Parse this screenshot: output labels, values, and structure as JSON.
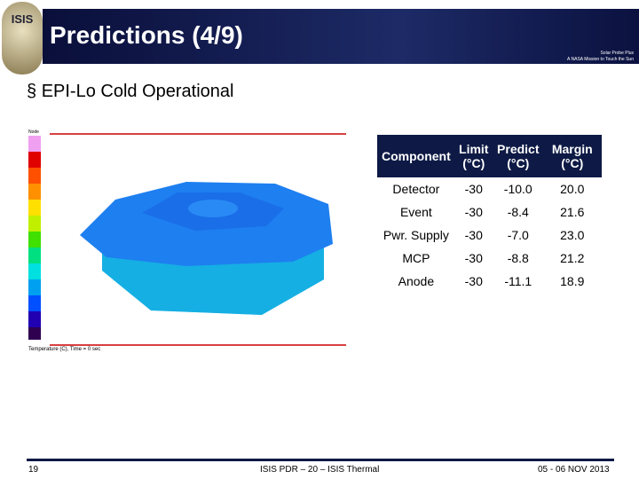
{
  "header": {
    "title": "Predictions (4/9)",
    "logo_left": "ISIS",
    "logo_right": [
      "Solar Probe Plus",
      "A NASA Mission to Touch the Sun"
    ]
  },
  "bullet": "EPI-Lo Cold Operational",
  "figure": {
    "legend_title": "Node",
    "caption": "Temperature (C), Time = 0 sec"
  },
  "table": {
    "header": [
      "Component",
      "Limit (°C)",
      "Predict (°C)",
      "Margin (°C)"
    ],
    "rows": [
      [
        "Detector",
        "-30",
        "-10.0",
        "20.0"
      ],
      [
        "Event",
        "-30",
        "-8.4",
        "21.6"
      ],
      [
        "Pwr. Supply",
        "-30",
        "-7.0",
        "23.0"
      ],
      [
        "MCP",
        "-30",
        "-8.8",
        "21.2"
      ],
      [
        "Anode",
        "-30",
        "-11.1",
        "18.9"
      ]
    ]
  },
  "footer": {
    "page": "19",
    "center": "ISIS PDR – 20 – ISIS Thermal",
    "date": "05 - 06 NOV 2013"
  }
}
